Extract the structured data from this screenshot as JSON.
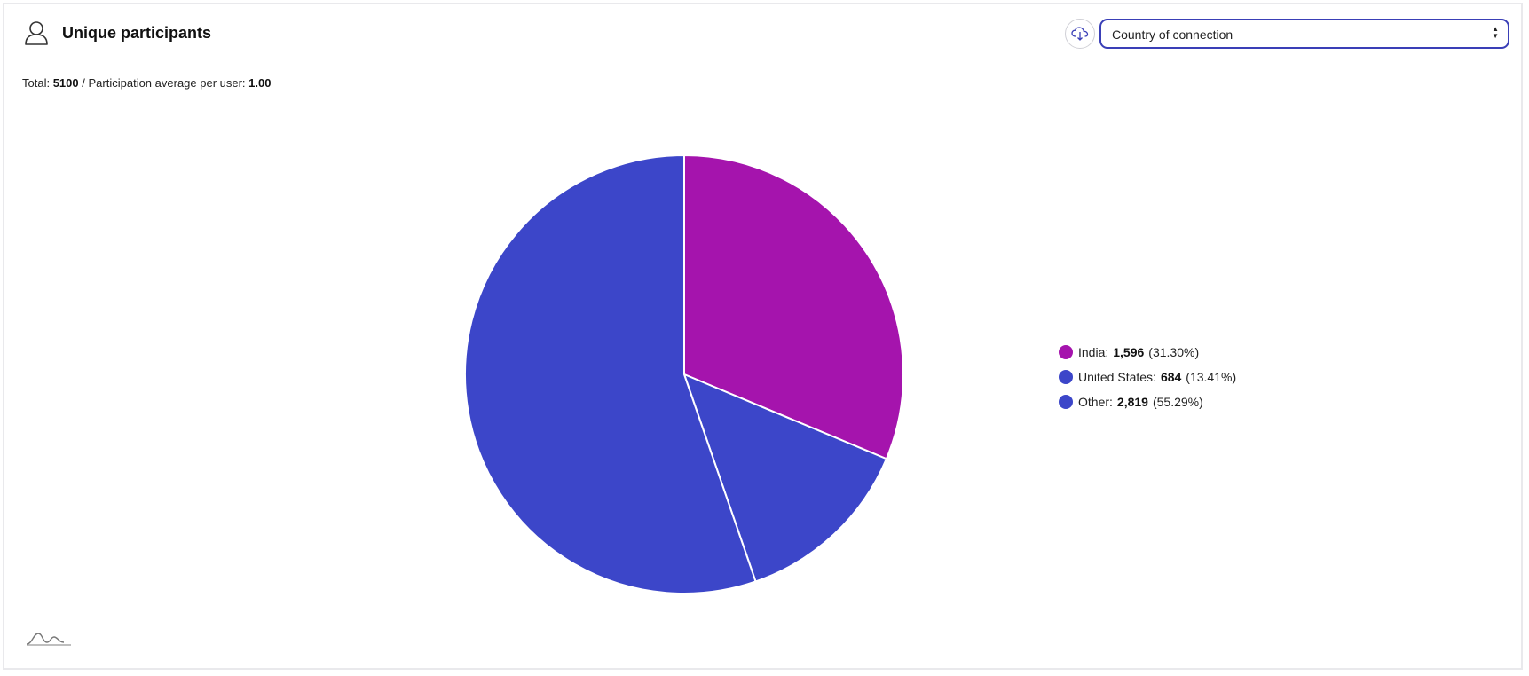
{
  "header": {
    "title": "Unique participants",
    "icon": "user-icon",
    "download_icon": "cloud-download-icon",
    "select_value": "Country of connection"
  },
  "summary": {
    "total_label": "Total:",
    "total_value": "5100",
    "separator": "/",
    "average_label": "Participation average per user:",
    "average_value": "1.00"
  },
  "chart_data": {
    "type": "pie",
    "title": "",
    "start_angle_deg": 0,
    "series": [
      {
        "name": "",
        "categories": [
          "India",
          "United States",
          "Other"
        ],
        "values": [
          1596,
          684,
          2819
        ],
        "percent_labels": [
          "(31.30%)",
          "(13.41%)",
          "(55.29%)"
        ],
        "value_labels": [
          "1,596",
          "684",
          "2,819"
        ],
        "colors": [
          "#a514ad",
          "#3c46c9",
          "#3c46c9"
        ]
      }
    ],
    "legend_position": "right"
  },
  "legend": {
    "items": [
      {
        "label": "India:",
        "value": "1,596",
        "percent": "(31.30%)"
      },
      {
        "label": "United States:",
        "value": "684",
        "percent": "(13.41%)"
      },
      {
        "label": "Other:",
        "value": "2,819",
        "percent": "(55.29%)"
      }
    ]
  },
  "footer": {
    "logo_icon": "wave-logo-icon"
  }
}
